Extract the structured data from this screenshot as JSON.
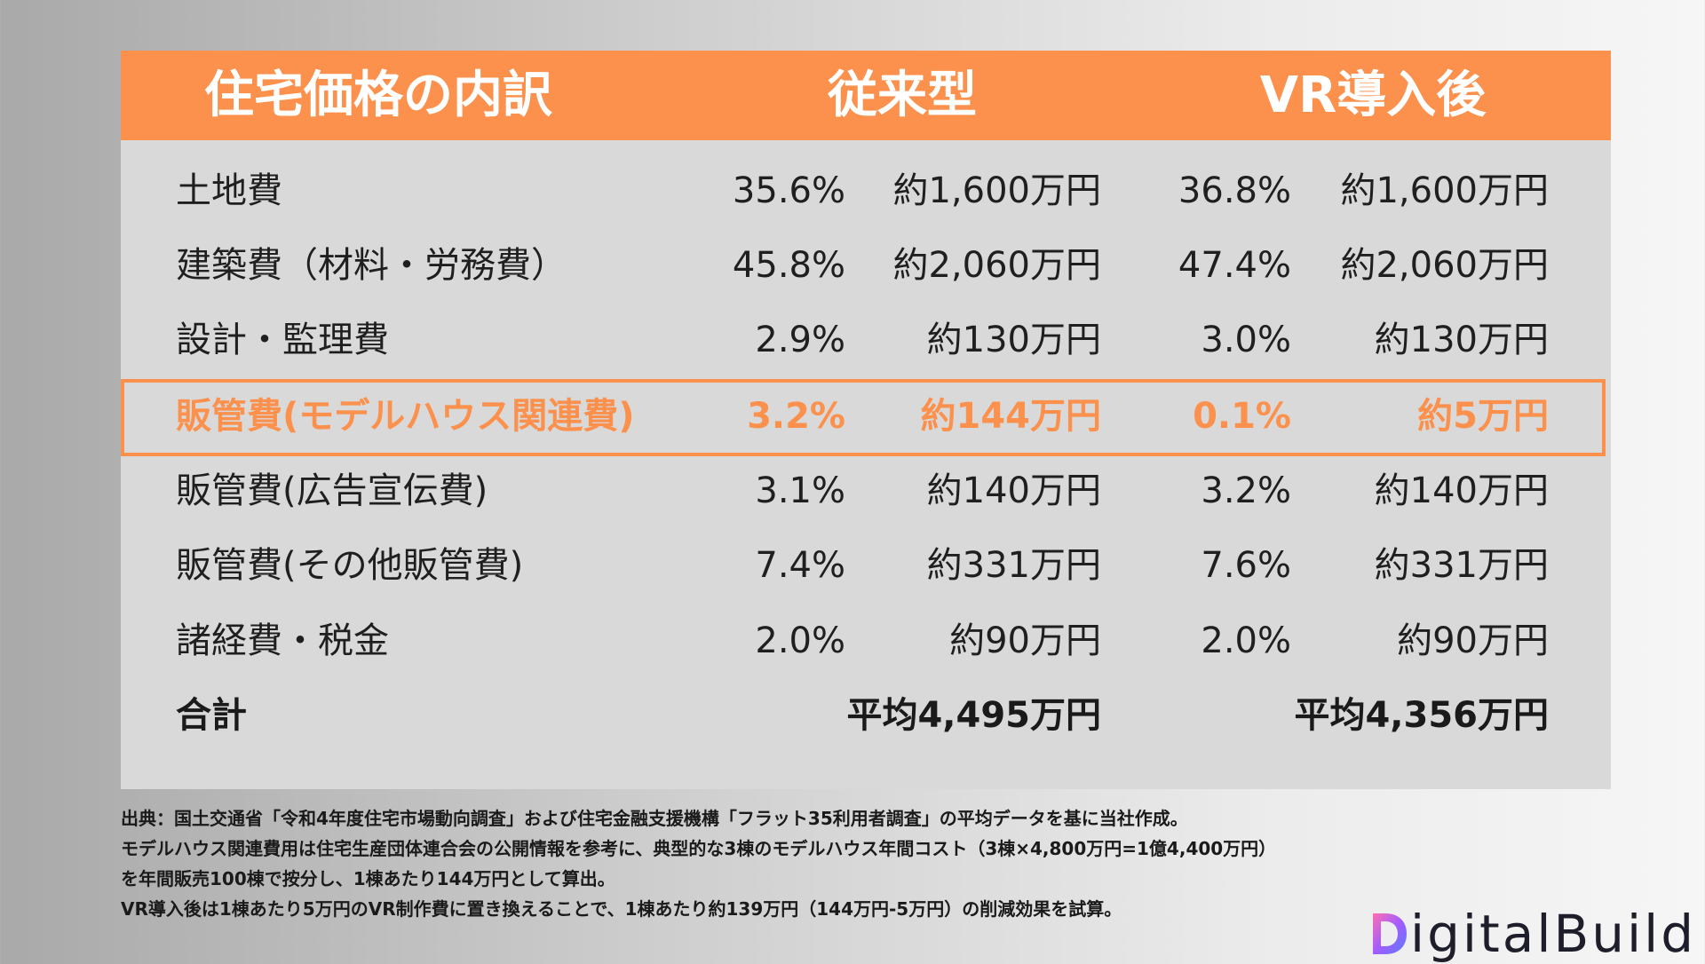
{
  "table": {
    "headers": {
      "item": "住宅価格の内訳",
      "traditional": "従来型",
      "vr": "VR導入後"
    },
    "rows": [
      {
        "item": "土地費",
        "trad_pct": "35.6%",
        "trad_amount": "約1,600万円",
        "vr_pct": "36.8%",
        "vr_amount": "約1,600万円"
      },
      {
        "item": "建築費（材料・労務費）",
        "trad_pct": "45.8%",
        "trad_amount": "約2,060万円",
        "vr_pct": "47.4%",
        "vr_amount": "約2,060万円"
      },
      {
        "item": "設計・監理費",
        "trad_pct": "2.9%",
        "trad_amount": "約130万円",
        "vr_pct": "3.0%",
        "vr_amount": "約130万円"
      },
      {
        "item": "販管費(モデルハウス関連費)",
        "trad_pct": "3.2%",
        "trad_amount": "約144万円",
        "vr_pct": "0.1%",
        "vr_amount": "約5万円"
      },
      {
        "item": "販管費(広告宣伝費)",
        "trad_pct": "3.1%",
        "trad_amount": "約140万円",
        "vr_pct": "3.2%",
        "vr_amount": "約140万円"
      },
      {
        "item": "販管費(その他販管費)",
        "trad_pct": "7.4%",
        "trad_amount": "約331万円",
        "vr_pct": "7.6%",
        "vr_amount": "約331万円"
      },
      {
        "item": "諸経費・税金",
        "trad_pct": "2.0%",
        "trad_amount": "約90万円",
        "vr_pct": "2.0%",
        "vr_amount": "約90万円"
      }
    ],
    "total": {
      "item": "合計",
      "trad_amount": "平均4,495万円",
      "vr_amount": "平均4,356万円"
    },
    "colors": {
      "accent": "#fb914d",
      "panel": "#d9d9d9",
      "text": "#1f1f1f"
    }
  },
  "footnotes": [
    "出典：国土交通省「令和4年度住宅市場動向調査」および住宅金融支援機構「フラット35利用者調査」の平均データを基に当社作成。",
    "モデルハウス関連費用は住宅生産団体連合会の公開情報を参考に、典型的な3棟のモデルハウス年間コスト（3棟×4,800万円=1億4,400万円）",
    "を年間販売100棟で按分し、1棟あたり144万円として算出。",
    "VR導入後は1棟あたり5万円のVR制作費に置き換えることで、1棟あたり約139万円（144万円-5万円）の削減効果を試算。"
  ],
  "logo": {
    "text": "DigitalBuild",
    "visible_text": "igitalBuild",
    "mark_icon": "d-gradient-mark-icon"
  }
}
